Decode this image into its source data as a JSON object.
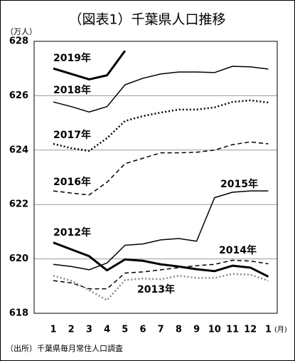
{
  "chart_data": {
    "type": "line",
    "title": "（図表1）千葉県人口推移",
    "y_unit": "（万人）",
    "x_unit": "(月)",
    "source": "（出所）千葉県毎月常住人口調査",
    "categories": [
      "1",
      "2",
      "3",
      "4",
      "5",
      "6",
      "7",
      "8",
      "9",
      "10",
      "11",
      "12",
      "1"
    ],
    "ylim": [
      618,
      628
    ],
    "yticks": [
      618,
      620,
      622,
      624,
      626,
      628
    ],
    "grid": true,
    "series": [
      {
        "name": "2019年",
        "color": "#000000",
        "line_style": "thick",
        "values": [
          627.0,
          626.8,
          626.6,
          626.75,
          627.65,
          null,
          null,
          null,
          null,
          null,
          null,
          null,
          null
        ]
      },
      {
        "name": "2018年",
        "color": "#000000",
        "line_style": "solid",
        "values": [
          625.77,
          625.6,
          625.4,
          625.6,
          626.4,
          626.64,
          626.8,
          626.87,
          626.87,
          626.85,
          627.08,
          627.06,
          626.98
        ]
      },
      {
        "name": "2017年",
        "color": "#000000",
        "line_style": "dotted",
        "values": [
          624.23,
          624.07,
          623.97,
          624.44,
          625.07,
          625.25,
          625.38,
          625.49,
          625.49,
          625.57,
          625.77,
          625.83,
          625.75
        ]
      },
      {
        "name": "2016年",
        "color": "#000000",
        "line_style": "dashed",
        "values": [
          622.5,
          622.42,
          622.35,
          622.82,
          623.5,
          623.7,
          623.9,
          623.9,
          623.92,
          624.0,
          624.2,
          624.3,
          624.23
        ]
      },
      {
        "name": "2015年",
        "color": "#000000",
        "line_style": "solid",
        "values": [
          619.8,
          619.72,
          619.6,
          619.85,
          620.5,
          620.55,
          620.7,
          620.75,
          620.65,
          622.25,
          622.45,
          622.5,
          622.5
        ]
      },
      {
        "name": "2012年",
        "color": "#000000",
        "line_style": "thick",
        "values": [
          620.6,
          620.35,
          620.1,
          619.58,
          619.98,
          619.93,
          619.8,
          619.72,
          619.62,
          619.55,
          619.75,
          619.68,
          619.35
        ]
      },
      {
        "name": "2014年",
        "color": "#000000",
        "line_style": "dashed",
        "values": [
          619.2,
          619.12,
          618.9,
          618.9,
          619.48,
          619.52,
          619.6,
          619.68,
          619.75,
          619.8,
          619.95,
          619.92,
          619.82
        ]
      },
      {
        "name": "2013年",
        "color": "#888888",
        "line_style": "dotted",
        "values": [
          619.38,
          619.2,
          618.85,
          618.48,
          619.22,
          619.28,
          619.25,
          619.38,
          619.3,
          619.3,
          619.45,
          619.42,
          619.2
        ]
      }
    ]
  }
}
